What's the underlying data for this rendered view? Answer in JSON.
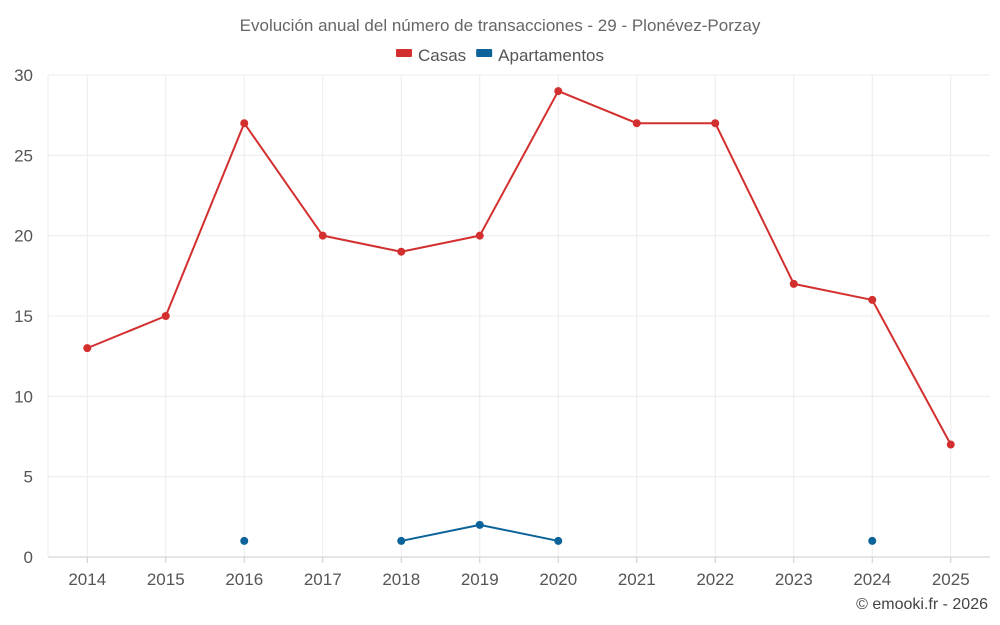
{
  "chart_data": {
    "type": "line",
    "title": "Evolución anual del número de transacciones - 29 - Plonévez-Porzay",
    "xlabel": "",
    "ylabel": "",
    "categories": [
      "2014",
      "2015",
      "2016",
      "2017",
      "2018",
      "2019",
      "2020",
      "2021",
      "2022",
      "2023",
      "2024",
      "2025"
    ],
    "ylim": [
      0,
      30
    ],
    "yticks": [
      0,
      5,
      10,
      15,
      20,
      25,
      30
    ],
    "grid": true,
    "legend_position": "top-center",
    "series": [
      {
        "name": "Casas",
        "color": "#d32f2f",
        "values": [
          13,
          15,
          27,
          20,
          19,
          20,
          29,
          27,
          27,
          17,
          16,
          7
        ]
      },
      {
        "name": "Apartamentos",
        "color": "#0b6399",
        "values": [
          null,
          null,
          1,
          null,
          1,
          2,
          1,
          null,
          null,
          null,
          1,
          null
        ]
      }
    ]
  },
  "credit": "© emooki.fr - 2026"
}
